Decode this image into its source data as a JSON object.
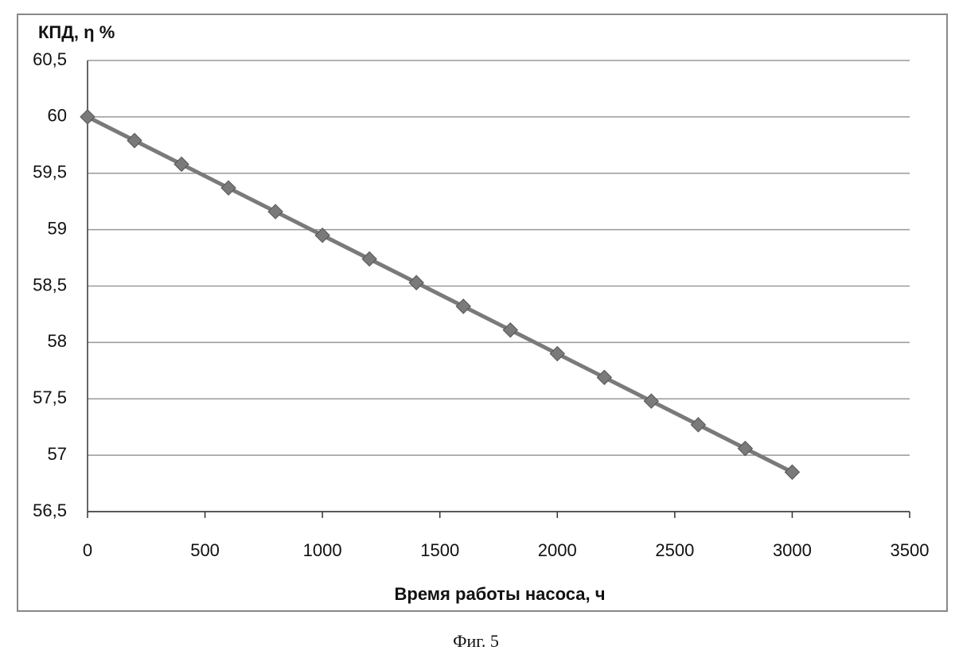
{
  "chart_data": {
    "type": "line",
    "ylabel": "КПД, η %",
    "xlabel": "Время работы насоса, ч",
    "caption": "Фиг. 5",
    "x": [
      0,
      200,
      400,
      600,
      800,
      1000,
      1200,
      1400,
      1600,
      1800,
      2000,
      2200,
      2400,
      2600,
      2800,
      3000
    ],
    "values": [
      60,
      59.79,
      59.58,
      59.37,
      59.16,
      58.95,
      58.74,
      58.53,
      58.32,
      58.11,
      57.9,
      57.69,
      57.48,
      57.27,
      57.06,
      56.85
    ],
    "color": "#7a7a7a",
    "xlim": [
      0,
      3500
    ],
    "xticks": [
      0,
      500,
      1000,
      1500,
      2000,
      2500,
      3000,
      3500
    ],
    "ylim": [
      56.5,
      60.5
    ],
    "yticks": [
      {
        "value": 56.5,
        "label": "56,5"
      },
      57,
      {
        "value": 57.5,
        "label": "57,5"
      },
      58,
      {
        "value": 58.5,
        "label": "58,5"
      },
      59,
      {
        "value": 59.5,
        "label": "59,5"
      },
      60,
      {
        "value": 60.5,
        "label": "60,5"
      }
    ],
    "grid": true
  }
}
